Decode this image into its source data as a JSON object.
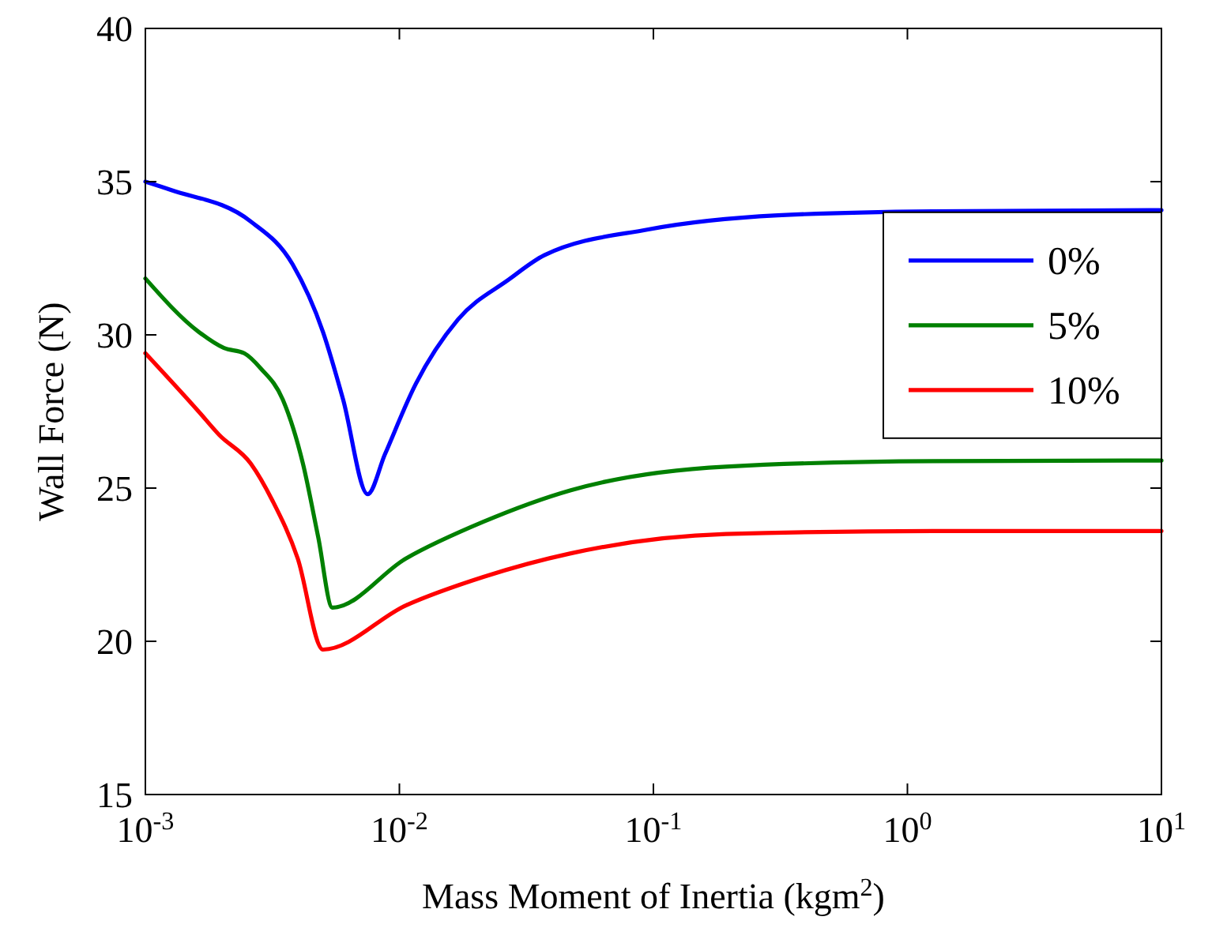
{
  "chart_data": {
    "type": "line",
    "xlabel": "Mass Moment of Inertia (kgm$^{2}$)",
    "ylabel": "Wall Force (N)",
    "log": "x",
    "xlim": [
      0.001,
      10
    ],
    "xticks": [
      {
        "value": 0.001,
        "label": "10$^{-3}$"
      },
      {
        "value": 0.01,
        "label": "10$^{-2}$"
      },
      {
        "value": 0.1,
        "label": "10$^{-1}$"
      },
      {
        "value": 1,
        "label": "10$^{0}$"
      },
      {
        "value": 10,
        "label": "10$^{1}$"
      }
    ],
    "ylim": [
      15,
      40
    ],
    "yticks": [
      15,
      20,
      25,
      30,
      35,
      40
    ],
    "grid": false,
    "legend": "top right",
    "line_style": "solid",
    "marker": "none",
    "series": [
      {
        "name": "0%",
        "color": "#0000ff",
        "x": [
          0.001,
          0.00126,
          0.0026,
          0.0038,
          0.005,
          0.006,
          0.0075,
          0.00877,
          0.0116,
          0.017,
          0.0269,
          0.0372,
          0.0955,
          0.309,
          1.26,
          10
        ],
        "values": [
          35.0,
          34.73,
          33.7,
          32.3,
          30.1,
          27.9,
          24.8,
          26.1,
          28.4,
          30.5,
          31.8,
          32.6,
          33.44,
          33.9,
          34.03,
          34.07
        ]
      },
      {
        "name": "5%",
        "color": "#008000",
        "x": [
          0.001,
          0.00162,
          0.00204,
          0.00245,
          0.00285,
          0.00347,
          0.00417,
          0.00479,
          0.00545,
          0.0106,
          0.0214,
          0.0473,
          0.193,
          1.26,
          10
        ],
        "values": [
          31.84,
          30.1,
          29.57,
          29.4,
          28.9,
          27.9,
          25.8,
          23.4,
          21.1,
          22.7,
          23.9,
          24.93,
          25.7,
          25.88,
          25.9
        ]
      },
      {
        "name": "10%",
        "color": "#ff0000",
        "x": [
          0.001,
          0.00162,
          0.00195,
          0.0026,
          0.00316,
          0.00398,
          0.005,
          0.0106,
          0.0214,
          0.0473,
          0.193,
          1.26,
          10
        ],
        "values": [
          29.4,
          27.5,
          26.74,
          25.8,
          24.6,
          22.7,
          19.73,
          21.17,
          22.1,
          22.87,
          23.5,
          23.6,
          23.6
        ]
      }
    ]
  }
}
